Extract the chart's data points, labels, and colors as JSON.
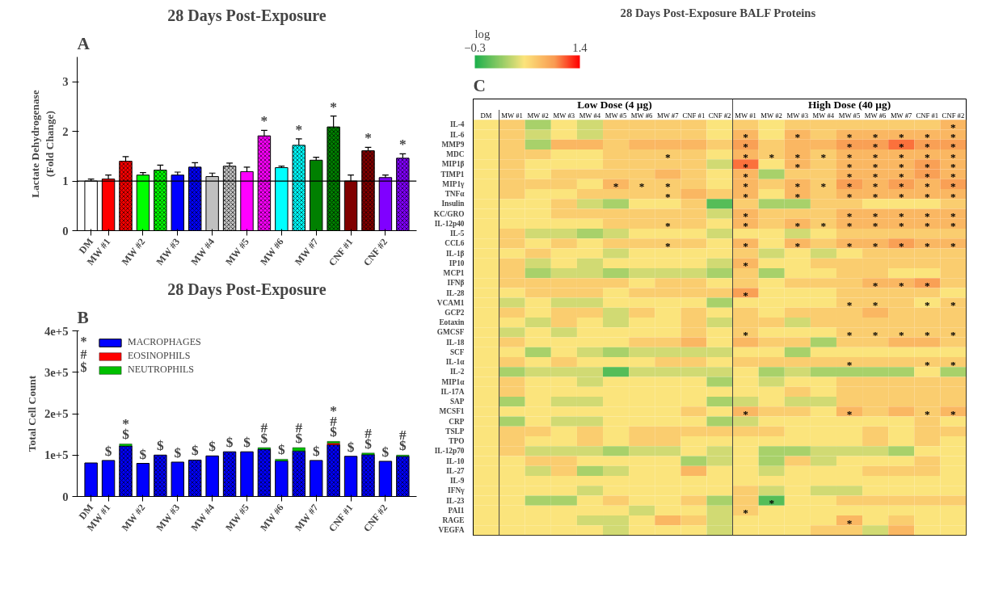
{
  "chart_data": [
    {
      "type": "bar",
      "title": "28 Days Post-Exposure",
      "ylabel": "Lactate Dehydrogenase\n(Fold Change)",
      "annotations": [
        "A"
      ],
      "categories": [
        "DM",
        "MW #1",
        null,
        "MW #2",
        null,
        "MW #3",
        null,
        "MW #4",
        null,
        "MW #5",
        null,
        "MW #6",
        null,
        "MW #7",
        null,
        "CNF #1",
        null,
        "CNF #2",
        null
      ],
      "values": [
        1.0,
        1.04,
        1.4,
        1.12,
        1.22,
        1.12,
        1.28,
        1.09,
        1.3,
        1.19,
        1.91,
        1.27,
        1.72,
        1.42,
        2.09,
        1.0,
        1.61,
        1.07,
        1.46
      ],
      "colors": [
        "#ffffff",
        "#ff0000",
        "#ff0000",
        "#00ff00",
        "#00ff00",
        "#0000ff",
        "#0000ff",
        "#c0c0c0",
        "#c0c0c0",
        "#ff00ff",
        "#ff00ff",
        "#00ffff",
        "#00ffff",
        "#008000",
        "#008000",
        "#800000",
        "#800000",
        "#8000ff",
        "#8000ff"
      ],
      "errors": [
        [
          1.0,
          1.04
        ],
        [
          1.04,
          1.12
        ],
        [
          1.4,
          1.49
        ],
        [
          1.12,
          1.17
        ],
        [
          1.22,
          1.32
        ],
        [
          1.12,
          1.18
        ],
        [
          1.28,
          1.37
        ],
        [
          1.09,
          1.16
        ],
        [
          1.3,
          1.36
        ],
        [
          1.19,
          1.28
        ],
        [
          1.91,
          2.02
        ],
        [
          1.27,
          1.3
        ],
        [
          1.72,
          1.85
        ],
        [
          1.42,
          1.48
        ],
        [
          2.09,
          2.31
        ],
        [
          1.0,
          1.12
        ],
        [
          1.61,
          1.68
        ],
        [
          1.07,
          1.12
        ],
        [
          1.46,
          1.55
        ]
      ],
      "value_labels": [
        null,
        null,
        null,
        null,
        null,
        null,
        null,
        null,
        null,
        null,
        "*",
        null,
        "*",
        null,
        "*",
        null,
        "*",
        null,
        "*"
      ],
      "ylim": [
        0,
        3.5
      ],
      "yticks": [
        0,
        1,
        2,
        3
      ],
      "ref_lines": [
        {
          "axis": "y",
          "value": 1
        }
      ]
    },
    {
      "type": "bar",
      "stacked": true,
      "title": "28 Days Post-Exposure",
      "ylabel": "Total Cell Count",
      "annotations": [
        "B",
        "*",
        "#",
        "$"
      ],
      "legend": "top left",
      "categories": [
        "DM",
        "MW #1",
        null,
        "MW #2",
        null,
        "MW #3",
        null,
        "MW #4",
        null,
        "MW #5",
        null,
        "MW #6",
        null,
        "MW #7",
        null,
        "CNF #1",
        null,
        "CNF #2",
        null
      ],
      "series": [
        {
          "name": "MACROPHAGES",
          "color": "#0000ff",
          "values": [
            81000,
            87000,
            122000,
            80000,
            100000,
            83000,
            88000,
            98000,
            108000,
            108000,
            114000,
            86000,
            110000,
            87000,
            125000,
            97000,
            101000,
            85000,
            97000
          ]
        },
        {
          "name": "EOSINOPHILS",
          "color": "#ff0000",
          "values": [
            0,
            0,
            0,
            0,
            0,
            0,
            0,
            0,
            0,
            0,
            0,
            0,
            0,
            0,
            4000,
            0,
            0,
            0,
            0
          ]
        },
        {
          "name": "NEUTROPHILS",
          "color": "#00c000",
          "values": [
            0,
            0,
            5000,
            0,
            0,
            0,
            0,
            0,
            0,
            0,
            4000,
            4000,
            8000,
            0,
            4000,
            0,
            4000,
            0,
            3000
          ]
        }
      ],
      "value_labels": [
        null,
        "$",
        "*\n$",
        "$",
        "$",
        "$",
        "$",
        "$",
        "$",
        "$",
        "#\n$",
        "$",
        "#\n$",
        "$",
        "*\n#\n$",
        "$",
        "#\n$",
        "$",
        "#\n$"
      ],
      "ylim": [
        0,
        400000
      ],
      "yticks": [
        {
          "value": 0,
          "label": "0"
        },
        {
          "value": 100000,
          "label": "1e+5"
        },
        {
          "value": 200000,
          "label": "2e+5"
        },
        {
          "value": 300000,
          "label": "3e+5"
        },
        {
          "value": 400000,
          "label": "4e+5"
        }
      ]
    },
    {
      "type": "heatmap",
      "title": "28 Days Post-Exposure  BALF Proteins",
      "annotations": [
        "C",
        "Low  Dose (4 µg)",
        "High Dose (40 µg)"
      ],
      "clabel": "log",
      "clim": [
        -0.3,
        1.4
      ],
      "cticks": [
        -0.3,
        1.4
      ],
      "categories": [
        "DM",
        "MW #1",
        "MW #2",
        "MW #3",
        "MW #4",
        "MW #5",
        "MW #6",
        "MW #7",
        "CNF #1",
        "CNF #2",
        "MW #1",
        "MW #2",
        "MW #3",
        "MW #4",
        "MW #5",
        "MW #6",
        "MW #7",
        "CNF #1",
        "CNF #2"
      ],
      "y_categories": [
        "IL-4",
        "IL-6",
        "MMP9",
        "MDC",
        "MIP1β",
        "TIMP1",
        "MIP1γ",
        "TNFα",
        "Insulin",
        "KC/GRO",
        "IL-12p40",
        "IL-5",
        "CCL6",
        "IL-1β",
        "IP10",
        "MCP1",
        "IFNβ",
        "IL-28",
        "VCAM1",
        "GCP2",
        "Eotaxin",
        "GMCSF",
        "IL-18",
        "SCF",
        "IL-1α",
        "IL-2",
        "MIP1α",
        "IL-17A",
        "SAP",
        "MCSF1",
        "CRP",
        "TSLP",
        "TPO",
        "IL-12p70",
        "IL-10",
        "IL-27",
        "IL-9",
        "IFNγ",
        "IL-23",
        "PAI1",
        "RAGE",
        "VEGFA"
      ],
      "cells": [
        [
          0.5,
          0.65,
          0.2,
          0.5,
          0.35,
          0.65,
          0.65,
          0.65,
          0.65,
          0.5,
          0.65,
          0.5,
          0.65,
          0.65,
          0.65,
          0.65,
          0.65,
          0.65,
          0.8
        ],
        [
          0.5,
          0.65,
          0.35,
          0.5,
          0.35,
          0.65,
          0.65,
          0.65,
          0.65,
          0.5,
          0.8,
          0.5,
          0.8,
          0.65,
          0.8,
          0.8,
          0.8,
          0.8,
          0.8
        ],
        [
          0.5,
          0.65,
          0.2,
          0.8,
          0.8,
          0.65,
          0.8,
          0.8,
          0.8,
          0.65,
          0.95,
          0.65,
          0.8,
          0.8,
          0.95,
          0.95,
          1.1,
          0.95,
          0.95
        ],
        [
          0.5,
          0.65,
          0.65,
          0.5,
          0.5,
          0.65,
          0.65,
          0.65,
          0.65,
          0.5,
          0.8,
          0.65,
          0.8,
          0.65,
          0.8,
          0.8,
          0.8,
          0.8,
          0.8
        ],
        [
          0.5,
          0.65,
          0.5,
          0.5,
          0.5,
          0.65,
          0.65,
          0.65,
          0.65,
          0.35,
          1.1,
          0.5,
          0.8,
          0.65,
          0.8,
          0.8,
          0.8,
          0.95,
          0.8
        ],
        [
          0.5,
          0.65,
          0.5,
          0.65,
          0.65,
          0.65,
          0.65,
          0.8,
          0.65,
          0.5,
          0.8,
          0.2,
          0.65,
          0.65,
          0.8,
          0.8,
          0.8,
          0.95,
          0.8
        ],
        [
          0.5,
          0.65,
          0.65,
          0.65,
          0.5,
          0.8,
          0.65,
          0.65,
          0.65,
          0.5,
          0.8,
          0.65,
          0.8,
          0.65,
          0.95,
          0.8,
          0.95,
          0.8,
          0.95
        ],
        [
          0.5,
          0.65,
          0.5,
          0.5,
          0.65,
          0.65,
          0.65,
          0.65,
          0.8,
          0.65,
          0.8,
          0.5,
          0.8,
          0.65,
          0.8,
          0.8,
          0.8,
          0.8,
          0.8
        ],
        [
          0.5,
          0.5,
          0.5,
          0.65,
          0.35,
          0.2,
          0.5,
          0.5,
          0.65,
          -0.1,
          0.65,
          0.2,
          0.2,
          0.65,
          0.65,
          0.5,
          0.5,
          0.5,
          0.65
        ],
        [
          0.5,
          0.5,
          0.5,
          0.65,
          0.65,
          0.65,
          0.65,
          0.65,
          0.65,
          0.35,
          0.8,
          0.65,
          0.65,
          0.65,
          0.8,
          0.8,
          0.8,
          0.8,
          0.8
        ],
        [
          0.5,
          0.5,
          0.5,
          0.5,
          0.5,
          0.65,
          0.65,
          0.65,
          0.65,
          0.5,
          0.8,
          0.65,
          0.8,
          0.65,
          0.8,
          0.8,
          0.8,
          0.8,
          0.8
        ],
        [
          0.5,
          0.65,
          0.35,
          0.35,
          0.2,
          0.35,
          0.5,
          0.5,
          0.5,
          0.35,
          0.5,
          0.5,
          0.35,
          0.5,
          0.65,
          0.65,
          0.65,
          0.65,
          0.65
        ],
        [
          0.5,
          0.65,
          0.5,
          0.65,
          0.5,
          0.65,
          0.65,
          0.65,
          0.65,
          0.5,
          0.8,
          0.5,
          0.8,
          0.65,
          0.8,
          0.8,
          0.95,
          0.8,
          0.8
        ],
        [
          0.5,
          0.5,
          0.65,
          0.5,
          0.5,
          0.35,
          0.5,
          0.5,
          0.5,
          0.5,
          0.65,
          0.35,
          0.5,
          0.35,
          0.5,
          0.65,
          0.65,
          0.65,
          0.65
        ],
        [
          0.5,
          0.65,
          0.35,
          0.5,
          0.35,
          0.5,
          0.5,
          0.5,
          0.5,
          0.35,
          0.8,
          0.5,
          0.5,
          0.65,
          0.65,
          0.65,
          0.65,
          0.65,
          0.65
        ],
        [
          0.5,
          0.65,
          0.2,
          0.35,
          0.35,
          0.2,
          0.35,
          0.35,
          0.35,
          0.2,
          0.65,
          0.2,
          0.5,
          0.5,
          0.65,
          0.65,
          0.5,
          0.5,
          0.65
        ],
        [
          0.5,
          0.65,
          0.65,
          0.65,
          0.65,
          0.65,
          0.5,
          0.65,
          0.65,
          0.5,
          0.65,
          0.5,
          0.65,
          0.65,
          0.65,
          0.8,
          0.8,
          0.95,
          0.65
        ],
        [
          0.5,
          0.5,
          0.65,
          0.65,
          0.65,
          0.5,
          0.65,
          0.65,
          0.65,
          0.65,
          0.95,
          0.5,
          0.5,
          0.5,
          0.65,
          0.65,
          0.65,
          0.65,
          0.5
        ],
        [
          0.5,
          0.35,
          0.5,
          0.35,
          0.35,
          0.5,
          0.5,
          0.5,
          0.5,
          0.2,
          0.5,
          0.5,
          0.5,
          0.5,
          0.65,
          0.65,
          0.65,
          0.5,
          0.65
        ],
        [
          0.5,
          0.65,
          0.5,
          0.65,
          0.65,
          0.35,
          0.65,
          0.5,
          0.65,
          0.5,
          0.65,
          0.5,
          0.65,
          0.65,
          0.65,
          0.8,
          0.65,
          0.65,
          0.65
        ],
        [
          0.5,
          0.5,
          0.35,
          0.65,
          0.5,
          0.35,
          0.5,
          0.5,
          0.65,
          0.35,
          0.65,
          0.65,
          0.35,
          0.65,
          0.65,
          0.65,
          0.65,
          0.65,
          0.65
        ],
        [
          0.5,
          0.35,
          0.5,
          0.35,
          0.5,
          0.5,
          0.5,
          0.5,
          0.65,
          0.5,
          0.65,
          0.5,
          0.5,
          0.5,
          0.65,
          0.65,
          0.65,
          0.65,
          0.65
        ],
        [
          0.5,
          0.65,
          0.5,
          0.5,
          0.5,
          0.5,
          0.65,
          0.65,
          0.8,
          0.5,
          0.8,
          0.65,
          0.65,
          0.2,
          0.65,
          0.65,
          0.8,
          0.8,
          0.65
        ],
        [
          0.5,
          0.5,
          0.2,
          0.5,
          0.35,
          0.2,
          0.35,
          0.35,
          0.35,
          0.35,
          0.5,
          0.5,
          0.2,
          0.5,
          0.5,
          0.5,
          0.5,
          0.5,
          0.5
        ],
        [
          0.5,
          0.65,
          0.5,
          0.65,
          0.5,
          0.5,
          0.5,
          0.65,
          0.65,
          0.5,
          0.65,
          0.65,
          0.65,
          0.65,
          0.65,
          0.65,
          0.65,
          0.65,
          0.65
        ],
        [
          0.5,
          0.2,
          0.35,
          0.35,
          0.35,
          -0.1,
          0.35,
          0.35,
          0.35,
          0.35,
          0.5,
          0.2,
          0.35,
          0.2,
          0.2,
          0.2,
          0.2,
          0.5,
          0.2
        ],
        [
          0.5,
          0.65,
          0.5,
          0.5,
          0.35,
          0.5,
          0.5,
          0.5,
          0.5,
          0.2,
          0.5,
          0.35,
          0.5,
          0.5,
          0.65,
          0.65,
          0.65,
          0.65,
          0.65
        ],
        [
          0.5,
          0.65,
          0.5,
          0.5,
          0.5,
          0.5,
          0.5,
          0.5,
          0.5,
          0.5,
          0.5,
          0.5,
          0.65,
          0.5,
          0.65,
          0.65,
          0.65,
          0.65,
          0.65
        ],
        [
          0.5,
          0.2,
          0.5,
          0.35,
          0.35,
          0.5,
          0.5,
          0.5,
          0.5,
          0.2,
          0.35,
          0.5,
          0.35,
          0.35,
          0.65,
          0.65,
          0.65,
          0.65,
          0.65
        ],
        [
          0.5,
          0.5,
          0.5,
          0.5,
          0.5,
          0.5,
          0.5,
          0.5,
          0.65,
          0.5,
          0.8,
          0.65,
          0.65,
          0.5,
          0.8,
          0.65,
          0.8,
          0.65,
          0.8
        ],
        [
          0.5,
          0.2,
          0.5,
          0.35,
          0.35,
          0.5,
          0.5,
          0.5,
          0.5,
          0.2,
          0.35,
          0.5,
          0.5,
          0.5,
          0.5,
          0.5,
          0.5,
          0.65,
          0.5
        ],
        [
          0.5,
          0.65,
          0.65,
          0.5,
          0.65,
          0.5,
          0.65,
          0.65,
          0.65,
          0.65,
          0.65,
          0.65,
          0.5,
          0.5,
          0.5,
          0.65,
          0.5,
          0.65,
          0.65
        ],
        [
          0.5,
          0.65,
          0.5,
          0.5,
          0.65,
          0.5,
          0.65,
          0.65,
          0.5,
          0.5,
          0.5,
          0.5,
          0.5,
          0.5,
          0.5,
          0.65,
          0.5,
          0.65,
          0.5
        ],
        [
          0.5,
          0.65,
          0.35,
          0.35,
          0.35,
          0.2,
          0.35,
          0.35,
          0.5,
          0.35,
          0.5,
          0.2,
          0.2,
          0.35,
          0.35,
          0.35,
          0.2,
          0.5,
          0.5
        ],
        [
          0.5,
          0.5,
          0.65,
          0.65,
          0.5,
          0.5,
          0.5,
          0.5,
          0.2,
          0.35,
          0.5,
          0.2,
          0.65,
          0.35,
          0.5,
          0.5,
          0.5,
          0.65,
          0.5
        ],
        [
          0.5,
          0.5,
          0.35,
          0.65,
          0.2,
          0.35,
          0.5,
          0.5,
          0.8,
          0.5,
          0.5,
          0.35,
          0.5,
          0.5,
          0.5,
          0.65,
          0.65,
          0.65,
          0.5
        ],
        [
          0.5,
          0.5,
          0.5,
          0.5,
          0.5,
          0.5,
          0.5,
          0.5,
          0.5,
          0.5,
          0.5,
          0.5,
          0.5,
          0.5,
          0.5,
          0.5,
          0.5,
          0.5,
          0.5
        ],
        [
          0.5,
          0.5,
          0.5,
          0.5,
          0.35,
          0.5,
          0.5,
          0.5,
          0.5,
          0.5,
          0.65,
          0.35,
          0.5,
          0.35,
          0.35,
          0.5,
          0.5,
          0.5,
          0.5
        ],
        [
          0.5,
          0.5,
          0.2,
          0.2,
          0.5,
          0.65,
          0.5,
          0.5,
          0.65,
          0.2,
          0.65,
          -0.1,
          0.5,
          0.5,
          0.65,
          0.65,
          0.65,
          0.65,
          0.65
        ],
        [
          0.5,
          0.5,
          0.5,
          0.5,
          0.5,
          0.5,
          0.35,
          0.5,
          0.5,
          0.35,
          0.65,
          0.5,
          0.5,
          0.5,
          0.5,
          0.5,
          0.5,
          0.5,
          0.5
        ],
        [
          0.5,
          0.5,
          0.5,
          0.5,
          0.35,
          0.35,
          0.5,
          0.8,
          0.65,
          0.35,
          0.5,
          0.5,
          0.5,
          0.5,
          0.8,
          0.5,
          0.65,
          0.5,
          0.5
        ],
        [
          0.5,
          0.5,
          0.5,
          0.5,
          0.5,
          0.35,
          0.5,
          0.5,
          0.5,
          0.35,
          0.5,
          0.5,
          0.5,
          0.65,
          0.65,
          0.35,
          0.8,
          0.5,
          0.5
        ]
      ],
      "cell_labels": [
        [
          null,
          null,
          null,
          null,
          null,
          null,
          null,
          null,
          null,
          null,
          null,
          null,
          null,
          null,
          null,
          null,
          null,
          null,
          "*"
        ],
        [
          null,
          null,
          null,
          null,
          null,
          null,
          null,
          null,
          null,
          null,
          "*",
          null,
          "*",
          null,
          "*",
          "*",
          "*",
          "*",
          "*"
        ],
        [
          null,
          null,
          null,
          null,
          null,
          null,
          null,
          null,
          null,
          null,
          "*",
          null,
          null,
          null,
          "*",
          "*",
          "*",
          "*",
          "*"
        ],
        [
          null,
          null,
          null,
          null,
          null,
          null,
          null,
          "*",
          null,
          null,
          "*",
          "*",
          "*",
          "*",
          "*",
          "*",
          "*",
          "*",
          "*"
        ],
        [
          null,
          null,
          null,
          null,
          null,
          null,
          null,
          null,
          null,
          null,
          "*",
          null,
          "*",
          null,
          "*",
          "*",
          "*",
          "*",
          "*"
        ],
        [
          null,
          null,
          null,
          null,
          null,
          null,
          null,
          null,
          null,
          null,
          "*",
          null,
          null,
          null,
          "*",
          "*",
          "*",
          "*",
          "*"
        ],
        [
          null,
          null,
          null,
          null,
          null,
          "*",
          "*",
          "*",
          null,
          null,
          "*",
          null,
          "*",
          "*",
          "*",
          "*",
          "*",
          "*",
          "*"
        ],
        [
          null,
          null,
          null,
          null,
          null,
          null,
          null,
          "*",
          null,
          null,
          "*",
          null,
          "*",
          null,
          "*",
          "*",
          "*",
          "*",
          "*"
        ],
        [
          null,
          null,
          null,
          null,
          null,
          null,
          null,
          null,
          null,
          null,
          null,
          null,
          null,
          null,
          null,
          null,
          null,
          null,
          null
        ],
        [
          null,
          null,
          null,
          null,
          null,
          null,
          null,
          null,
          null,
          null,
          "*",
          null,
          null,
          null,
          "*",
          "*",
          "*",
          "*",
          "*"
        ],
        [
          null,
          null,
          null,
          null,
          null,
          null,
          null,
          "*",
          null,
          null,
          "*",
          null,
          "*",
          "*",
          "*",
          "*",
          "*",
          "*",
          "*"
        ],
        [
          null,
          null,
          null,
          null,
          null,
          null,
          null,
          null,
          null,
          null,
          null,
          null,
          null,
          null,
          null,
          null,
          null,
          null,
          null
        ],
        [
          null,
          null,
          null,
          null,
          null,
          null,
          null,
          "*",
          null,
          null,
          "*",
          null,
          "*",
          null,
          "*",
          "*",
          "*",
          "*",
          "*"
        ],
        [
          null,
          null,
          null,
          null,
          null,
          null,
          null,
          null,
          null,
          null,
          null,
          null,
          null,
          null,
          null,
          null,
          null,
          null,
          null
        ],
        [
          null,
          null,
          null,
          null,
          null,
          null,
          null,
          null,
          null,
          null,
          "*",
          null,
          null,
          null,
          null,
          null,
          null,
          null,
          null
        ],
        [
          null,
          null,
          null,
          null,
          null,
          null,
          null,
          null,
          null,
          null,
          null,
          null,
          null,
          null,
          null,
          null,
          null,
          null,
          null
        ],
        [
          null,
          null,
          null,
          null,
          null,
          null,
          null,
          null,
          null,
          null,
          null,
          null,
          null,
          null,
          null,
          "*",
          "*",
          "*",
          null
        ],
        [
          null,
          null,
          null,
          null,
          null,
          null,
          null,
          null,
          null,
          null,
          "*",
          null,
          null,
          null,
          null,
          null,
          null,
          null,
          null
        ],
        [
          null,
          null,
          null,
          null,
          null,
          null,
          null,
          null,
          null,
          null,
          null,
          null,
          null,
          null,
          "*",
          "*",
          null,
          "*",
          "*"
        ],
        [
          null,
          null,
          null,
          null,
          null,
          null,
          null,
          null,
          null,
          null,
          null,
          null,
          null,
          null,
          null,
          null,
          null,
          null,
          null
        ],
        [
          null,
          null,
          null,
          null,
          null,
          null,
          null,
          null,
          null,
          null,
          null,
          null,
          null,
          null,
          null,
          null,
          null,
          null,
          null
        ],
        [
          null,
          null,
          null,
          null,
          null,
          null,
          null,
          null,
          null,
          null,
          "*",
          null,
          null,
          null,
          "*",
          "*",
          "*",
          "*",
          "*"
        ],
        [
          null,
          null,
          null,
          null,
          null,
          null,
          null,
          null,
          null,
          null,
          null,
          null,
          null,
          null,
          null,
          null,
          null,
          null,
          null
        ],
        [
          null,
          null,
          null,
          null,
          null,
          null,
          null,
          null,
          null,
          null,
          null,
          null,
          null,
          null,
          null,
          null,
          null,
          null,
          null
        ],
        [
          null,
          null,
          null,
          null,
          null,
          null,
          null,
          null,
          null,
          null,
          null,
          null,
          null,
          null,
          "*",
          null,
          null,
          "*",
          "*"
        ],
        [
          null,
          null,
          null,
          null,
          null,
          null,
          null,
          null,
          null,
          null,
          null,
          null,
          null,
          null,
          null,
          null,
          null,
          null,
          null
        ],
        [
          null,
          null,
          null,
          null,
          null,
          null,
          null,
          null,
          null,
          null,
          null,
          null,
          null,
          null,
          null,
          null,
          null,
          null,
          null
        ],
        [
          null,
          null,
          null,
          null,
          null,
          null,
          null,
          null,
          null,
          null,
          null,
          null,
          null,
          null,
          null,
          null,
          null,
          null,
          null
        ],
        [
          null,
          null,
          null,
          null,
          null,
          null,
          null,
          null,
          null,
          null,
          null,
          null,
          null,
          null,
          null,
          null,
          null,
          null,
          null
        ],
        [
          null,
          null,
          null,
          null,
          null,
          null,
          null,
          null,
          null,
          null,
          "*",
          null,
          null,
          null,
          "*",
          null,
          null,
          "*",
          "*"
        ],
        [
          null,
          null,
          null,
          null,
          null,
          null,
          null,
          null,
          null,
          null,
          null,
          null,
          null,
          null,
          null,
          null,
          null,
          null,
          null
        ],
        [
          null,
          null,
          null,
          null,
          null,
          null,
          null,
          null,
          null,
          null,
          null,
          null,
          null,
          null,
          null,
          null,
          null,
          null,
          null
        ],
        [
          null,
          null,
          null,
          null,
          null,
          null,
          null,
          null,
          null,
          null,
          null,
          null,
          null,
          null,
          null,
          null,
          null,
          null,
          null
        ],
        [
          null,
          null,
          null,
          null,
          null,
          null,
          null,
          null,
          null,
          null,
          null,
          null,
          null,
          null,
          null,
          null,
          null,
          null,
          null
        ],
        [
          null,
          null,
          null,
          null,
          null,
          null,
          null,
          null,
          null,
          null,
          null,
          null,
          null,
          null,
          null,
          null,
          null,
          null,
          null
        ],
        [
          null,
          null,
          null,
          null,
          null,
          null,
          null,
          null,
          null,
          null,
          null,
          null,
          null,
          null,
          null,
          null,
          null,
          null,
          null
        ],
        [
          null,
          null,
          null,
          null,
          null,
          null,
          null,
          null,
          null,
          null,
          null,
          null,
          null,
          null,
          null,
          null,
          null,
          null,
          null
        ],
        [
          null,
          null,
          null,
          null,
          null,
          null,
          null,
          null,
          null,
          null,
          null,
          null,
          null,
          null,
          null,
          null,
          null,
          null,
          null
        ],
        [
          null,
          null,
          null,
          null,
          null,
          null,
          null,
          null,
          null,
          null,
          null,
          "*",
          null,
          null,
          null,
          null,
          null,
          null,
          null
        ],
        [
          null,
          null,
          null,
          null,
          null,
          null,
          null,
          null,
          null,
          null,
          "*",
          null,
          null,
          null,
          null,
          null,
          null,
          null,
          null
        ],
        [
          null,
          null,
          null,
          null,
          null,
          null,
          null,
          null,
          null,
          null,
          null,
          null,
          null,
          null,
          "*",
          null,
          null,
          null,
          null
        ],
        [
          null,
          null,
          null,
          null,
          null,
          null,
          null,
          null,
          null,
          null,
          null,
          null,
          null,
          null,
          null,
          null,
          null,
          null,
          null
        ]
      ]
    }
  ]
}
